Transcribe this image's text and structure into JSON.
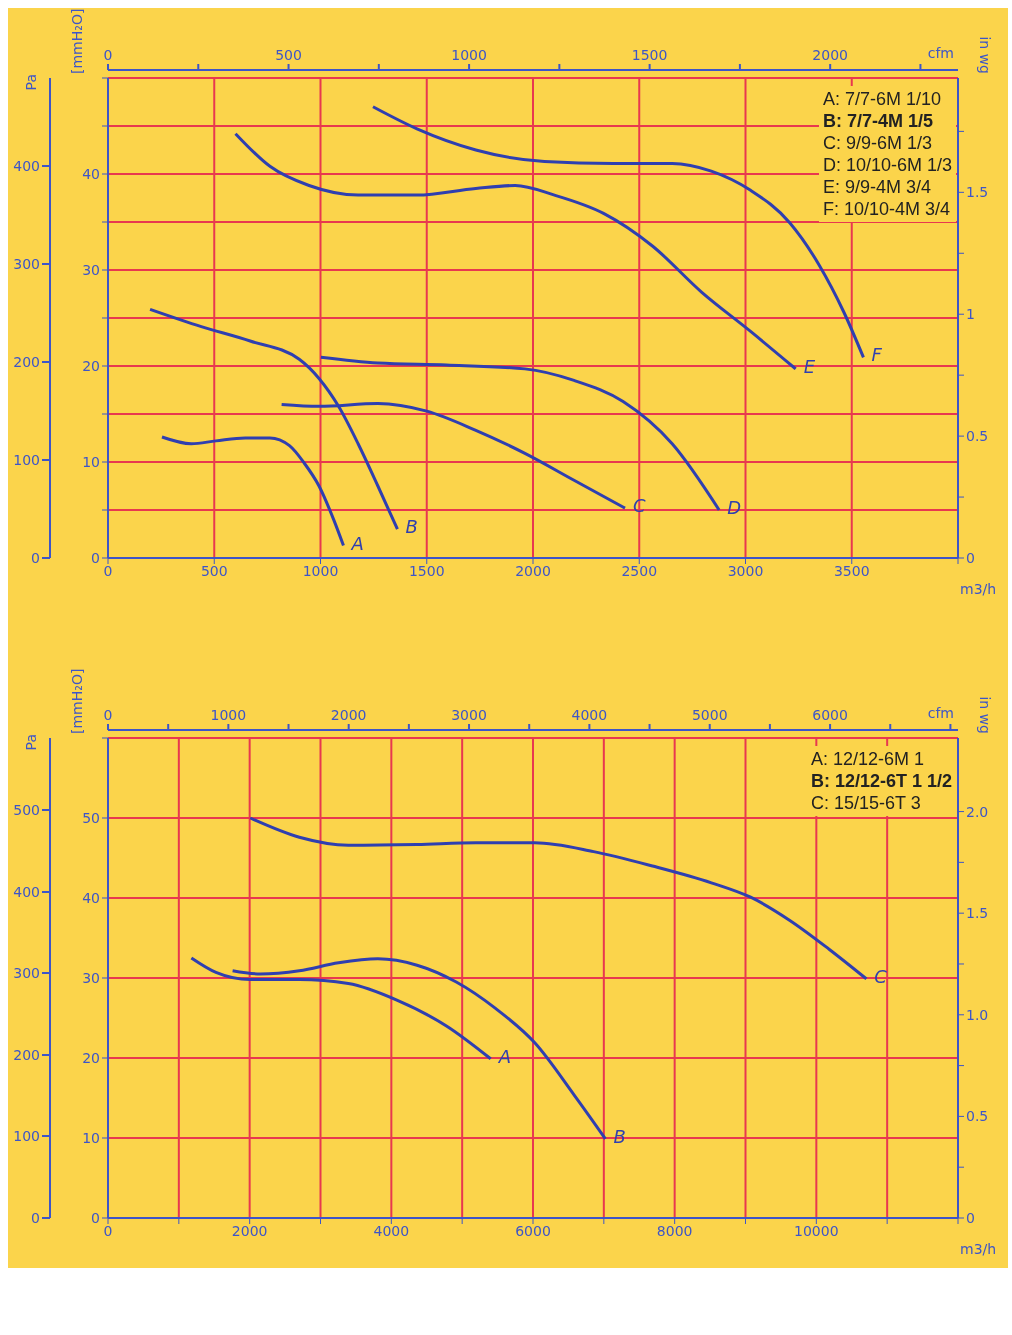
{
  "chart_data": [
    {
      "type": "line",
      "xlabel": "m3/h",
      "x2label": "cfm",
      "ylabel": "[mmH₂O]",
      "y2label": "Pa",
      "y3label": "in wg",
      "xlim": [
        0,
        4000
      ],
      "xticks": [
        0,
        500,
        1000,
        1500,
        2000,
        2500,
        3000,
        3500,
        {
          "value": 4000,
          "label": null
        }
      ],
      "ylim": [
        0,
        50
      ],
      "yticks": [
        0,
        {
          "value": 5,
          "label": null
        },
        10,
        {
          "value": 15,
          "label": null
        },
        20,
        {
          "value": 25,
          "label": null
        },
        30,
        {
          "value": 35,
          "label": null
        },
        40,
        {
          "value": 45,
          "label": null
        },
        {
          "value": 50,
          "label": null
        }
      ],
      "x2lim": [
        0,
        2354
      ],
      "x2ticks": [
        0,
        {
          "value": 250,
          "label": null
        },
        500,
        {
          "value": 750,
          "label": null
        },
        1000,
        {
          "value": 1250,
          "label": null
        },
        1500,
        {
          "value": 1750,
          "label": null
        },
        2000,
        {
          "value": 2250,
          "label": null
        }
      ],
      "y2lim": [
        0,
        490.3
      ],
      "y2ticks": [
        0,
        100,
        200,
        300,
        400
      ],
      "y3lim": [
        0,
        1.969
      ],
      "y3ticks": [
        0,
        {
          "value": 0.25,
          "label": null
        },
        0.5,
        {
          "value": 0.75,
          "label": null
        },
        1,
        {
          "value": 1.25,
          "label": null
        },
        1.5,
        {
          "value": 1.75,
          "label": null
        }
      ],
      "grid": true,
      "legend": false,
      "marker": "none",
      "line_style": "solid",
      "annotations": [
        "A: 7/7-6M 1/10",
        "B: 7/7-4M 1/5",
        "C: 9/9-6M 1/3",
        "D: 10/10-6M 1/3",
        "E: 9/9-4M 3/4",
        "F: 10/10-4M 3/4"
      ],
      "series": [
        {
          "name": "A",
          "color": "#2f3fb0",
          "x": [
            254,
            392,
            508,
            646,
            762,
            854,
            923,
            993,
            1062,
            1108
          ],
          "values": [
            12.6,
            11.9,
            12.2,
            12.5,
            12.5,
            11.7,
            9.9,
            7.5,
            4.0,
            1.3
          ]
        },
        {
          "name": "B",
          "color": "#2f3fb0",
          "x": [
            198,
            439,
            669,
            900,
            993,
            1085,
            1177,
            1270,
            1362
          ],
          "values": [
            25.9,
            24.1,
            22.6,
            20.7,
            18.7,
            15.8,
            11.9,
            7.5,
            3.0
          ]
        },
        {
          "name": "C",
          "color": "#2f3fb0",
          "x": [
            817,
            993,
            1270,
            1500,
            1731,
            1962,
            2193,
            2433
          ],
          "values": [
            16.0,
            15.8,
            16.1,
            15.3,
            13.3,
            10.9,
            8.1,
            5.2
          ]
        },
        {
          "name": "D",
          "color": "#2f3fb0",
          "x": [
            1002,
            1270,
            1593,
            1962,
            2193,
            2424,
            2655,
            2876
          ],
          "values": [
            20.9,
            20.3,
            20.1,
            19.7,
            18.5,
            16.3,
            11.9,
            5.0
          ]
        },
        {
          "name": "E",
          "color": "#2f3fb0",
          "x": [
            600,
            762,
            946,
            1177,
            1454,
            1731,
            1916,
            2101,
            2332,
            2562,
            2793,
            3024,
            3236
          ],
          "values": [
            44.2,
            40.8,
            38.8,
            37.8,
            37.8,
            38.5,
            38.8,
            37.8,
            35.9,
            32.5,
            27.7,
            23.6,
            19.7
          ]
        },
        {
          "name": "F",
          "color": "#2f3fb0",
          "x": [
            1247,
            1454,
            1731,
            2054,
            2378,
            2655,
            2839,
            3024,
            3209,
            3347,
            3463,
            3555
          ],
          "values": [
            47.0,
            44.7,
            42.5,
            41.3,
            41.1,
            41.1,
            40.3,
            38.3,
            34.9,
            30.5,
            25.6,
            20.9
          ]
        }
      ]
    },
    {
      "type": "line",
      "xlabel": "m3/h",
      "x2label": "cfm",
      "ylabel": "[mmH₂O]",
      "y2label": "Pa",
      "y3label": "in wg",
      "xlim": [
        0,
        12000
      ],
      "xticks": [
        0,
        {
          "value": 1000,
          "label": null
        },
        2000,
        {
          "value": 3000,
          "label": null
        },
        4000,
        {
          "value": 5000,
          "label": null
        },
        6000,
        {
          "value": 7000,
          "label": null
        },
        8000,
        {
          "value": 9000,
          "label": null
        },
        10000,
        {
          "value": 11000,
          "label": null
        },
        {
          "value": 12000,
          "label": null
        }
      ],
      "ylim": [
        0,
        60
      ],
      "yticks": [
        0,
        10,
        20,
        30,
        40,
        50,
        {
          "value": 60,
          "label": null
        }
      ],
      "x2lim": [
        0,
        7063
      ],
      "x2ticks": [
        0,
        {
          "value": 500,
          "label": null
        },
        1000,
        {
          "value": 1500,
          "label": null
        },
        2000,
        {
          "value": 2500,
          "label": null
        },
        3000,
        {
          "value": 3500,
          "label": null
        },
        4000,
        {
          "value": 4500,
          "label": null
        },
        5000,
        {
          "value": 5500,
          "label": null
        },
        6000,
        {
          "value": 6500,
          "label": null
        },
        {
          "value": 7000,
          "label": null
        }
      ],
      "y2lim": [
        0,
        588.4
      ],
      "y2ticks": [
        0,
        100,
        200,
        300,
        400,
        500
      ],
      "y3lim": [
        0,
        2.362
      ],
      "y3ticks": [
        0,
        {
          "value": 0.25,
          "label": null
        },
        0.5,
        {
          "value": 0.75,
          "label": null
        },
        {
          "value": 1,
          "label": "1.0"
        },
        {
          "value": 1.25,
          "label": null
        },
        1.5,
        {
          "value": 1.75,
          "label": null
        },
        {
          "value": 2,
          "label": "2.0"
        }
      ],
      "grid": true,
      "legend": false,
      "marker": "none",
      "line_style": "solid",
      "annotations": [
        "A: 12/12-6M 1",
        "B: 12/12-6T 1 1/2",
        "C: 15/15-6T 3"
      ],
      "series": [
        {
          "name": "A",
          "color": "#2f3fb0",
          "x": [
            1177,
            1524,
            2008,
            2701,
            3393,
            4086,
            4778,
            5402
          ],
          "values": [
            32.5,
            30.7,
            29.8,
            29.8,
            29.3,
            27.2,
            24.0,
            19.9
          ]
        },
        {
          "name": "B",
          "color": "#2f3fb0",
          "x": [
            1759,
            2147,
            2701,
            3255,
            3809,
            4363,
            4917,
            5471,
            6025,
            6579,
            7022
          ],
          "values": [
            30.9,
            30.5,
            30.9,
            31.9,
            32.4,
            31.6,
            29.5,
            26.2,
            21.9,
            15.4,
            9.9
          ]
        },
        {
          "name": "C",
          "color": "#2f3fb0",
          "x": [
            2008,
            2701,
            3393,
            4363,
            5194,
            6025,
            6856,
            7687,
            8518,
            9072,
            9626,
            10180,
            10706
          ],
          "values": [
            50.0,
            47.6,
            46.6,
            46.7,
            46.9,
            46.9,
            45.8,
            44.0,
            41.9,
            40.1,
            37.2,
            33.6,
            29.9
          ]
        }
      ]
    }
  ]
}
